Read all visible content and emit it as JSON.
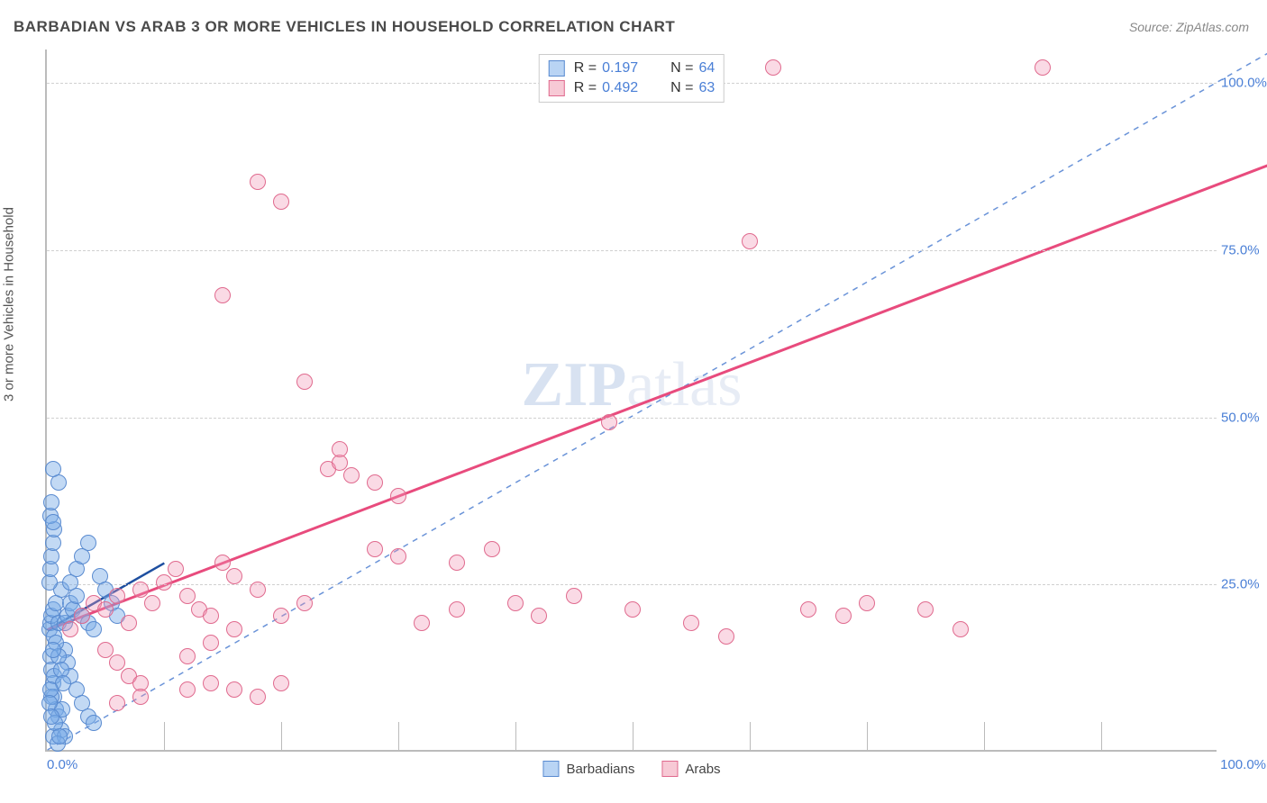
{
  "title": "BARBADIAN VS ARAB 3 OR MORE VEHICLES IN HOUSEHOLD CORRELATION CHART",
  "source": "Source: ZipAtlas.com",
  "ylabel": "3 or more Vehicles in Household",
  "watermark_a": "ZIP",
  "watermark_b": "atlas",
  "chart": {
    "type": "scatter",
    "xlim": [
      0,
      100
    ],
    "ylim": [
      0,
      105
    ],
    "background_color": "#ffffff",
    "grid_color": "#d0d0d0",
    "axis_color": "#bbbbbb",
    "tick_label_color": "#4a7fd6",
    "yticks": [
      25,
      50,
      75,
      100
    ],
    "ytick_labels": [
      "25.0%",
      "50.0%",
      "75.0%",
      "100.0%"
    ],
    "xticks_minor": [
      10,
      20,
      30,
      40,
      50,
      60,
      70,
      80,
      90
    ],
    "x_origin_label": "0.0%",
    "x_end_label": "100.0%",
    "point_radius": 9,
    "reference_line": {
      "color": "#6a93d8",
      "dash": "6,6",
      "from": [
        0,
        0
      ],
      "to": [
        105,
        105
      ]
    }
  },
  "series": [
    {
      "name": "Barbadians",
      "swatch_fill": "#b9d4f4",
      "swatch_border": "#5a8bd0",
      "point_fill": "rgba(120,170,230,0.45)",
      "point_border": "#5a8bd0",
      "trend": {
        "color": "#1e4fa0",
        "width": 2.5,
        "from": [
          0,
          18
        ],
        "to": [
          10,
          28
        ]
      },
      "R": "0.197",
      "N": "64",
      "points": [
        [
          0.2,
          18
        ],
        [
          0.3,
          19
        ],
        [
          0.4,
          20
        ],
        [
          0.5,
          21
        ],
        [
          0.6,
          17
        ],
        [
          0.8,
          22
        ],
        [
          1.0,
          19
        ],
        [
          1.2,
          24
        ],
        [
          0.3,
          14
        ],
        [
          0.4,
          12
        ],
        [
          0.5,
          10
        ],
        [
          0.6,
          8
        ],
        [
          0.8,
          6
        ],
        [
          1.0,
          5
        ],
        [
          1.2,
          3
        ],
        [
          0.5,
          2
        ],
        [
          0.2,
          25
        ],
        [
          0.3,
          27
        ],
        [
          0.4,
          29
        ],
        [
          0.5,
          31
        ],
        [
          0.6,
          33
        ],
        [
          0.3,
          35
        ],
        [
          0.4,
          37
        ],
        [
          0.5,
          34
        ],
        [
          1.5,
          19
        ],
        [
          1.8,
          20
        ],
        [
          2.0,
          22
        ],
        [
          2.2,
          21
        ],
        [
          2.5,
          23
        ],
        [
          3.0,
          20
        ],
        [
          3.5,
          19
        ],
        [
          4.0,
          18
        ],
        [
          1.5,
          15
        ],
        [
          1.8,
          13
        ],
        [
          2.0,
          11
        ],
        [
          2.5,
          9
        ],
        [
          3.0,
          7
        ],
        [
          3.5,
          5
        ],
        [
          4.0,
          4
        ],
        [
          1.5,
          2
        ],
        [
          2.0,
          25
        ],
        [
          2.5,
          27
        ],
        [
          3.0,
          29
        ],
        [
          3.5,
          31
        ],
        [
          4.5,
          26
        ],
        [
          5.0,
          24
        ],
        [
          5.5,
          22
        ],
        [
          6.0,
          20
        ],
        [
          1.0,
          40
        ],
        [
          0.5,
          42
        ],
        [
          0.7,
          4
        ],
        [
          0.9,
          1
        ],
        [
          1.1,
          2
        ],
        [
          1.3,
          6
        ],
        [
          0.4,
          8
        ],
        [
          0.6,
          11
        ],
        [
          0.8,
          16
        ],
        [
          1.0,
          14
        ],
        [
          1.2,
          12
        ],
        [
          1.4,
          10
        ],
        [
          0.5,
          15
        ],
        [
          0.3,
          9
        ],
        [
          0.2,
          7
        ],
        [
          0.4,
          5
        ]
      ]
    },
    {
      "name": "Arabs",
      "swatch_fill": "#f7c9d5",
      "swatch_border": "#e06a8e",
      "point_fill": "rgba(240,150,180,0.35)",
      "point_border": "#e06a8e",
      "trend": {
        "color": "#e84b7d",
        "width": 3,
        "from": [
          0,
          18
        ],
        "to": [
          105,
          88
        ]
      },
      "R": "0.492",
      "N": "63",
      "points": [
        [
          2,
          18
        ],
        [
          3,
          20
        ],
        [
          4,
          22
        ],
        [
          5,
          21
        ],
        [
          6,
          23
        ],
        [
          7,
          19
        ],
        [
          8,
          24
        ],
        [
          9,
          22
        ],
        [
          10,
          25
        ],
        [
          11,
          27
        ],
        [
          12,
          23
        ],
        [
          13,
          21
        ],
        [
          14,
          20
        ],
        [
          15,
          28
        ],
        [
          16,
          26
        ],
        [
          18,
          24
        ],
        [
          5,
          15
        ],
        [
          6,
          13
        ],
        [
          7,
          11
        ],
        [
          8,
          10
        ],
        [
          12,
          14
        ],
        [
          14,
          16
        ],
        [
          16,
          18
        ],
        [
          20,
          20
        ],
        [
          22,
          22
        ],
        [
          24,
          42
        ],
        [
          25,
          43
        ],
        [
          26,
          41
        ],
        [
          28,
          40
        ],
        [
          30,
          38
        ],
        [
          32,
          19
        ],
        [
          35,
          21
        ],
        [
          38,
          30
        ],
        [
          40,
          22
        ],
        [
          42,
          20
        ],
        [
          45,
          23
        ],
        [
          48,
          49
        ],
        [
          50,
          21
        ],
        [
          55,
          19
        ],
        [
          58,
          17
        ],
        [
          60,
          76
        ],
        [
          62,
          102
        ],
        [
          65,
          21
        ],
        [
          68,
          20
        ],
        [
          70,
          22
        ],
        [
          75,
          21
        ],
        [
          78,
          18
        ],
        [
          85,
          102
        ],
        [
          15,
          68
        ],
        [
          18,
          85
        ],
        [
          20,
          82
        ],
        [
          22,
          55
        ],
        [
          25,
          45
        ],
        [
          28,
          30
        ],
        [
          30,
          29
        ],
        [
          35,
          28
        ],
        [
          12,
          9
        ],
        [
          14,
          10
        ],
        [
          16,
          9
        ],
        [
          18,
          8
        ],
        [
          20,
          10
        ],
        [
          8,
          8
        ],
        [
          6,
          7
        ]
      ]
    }
  ],
  "legend_top": {
    "r_label": "R =",
    "n_label": "N ="
  },
  "legend_bottom": [
    {
      "key": "Barbadians"
    },
    {
      "key": "Arabs"
    }
  ]
}
